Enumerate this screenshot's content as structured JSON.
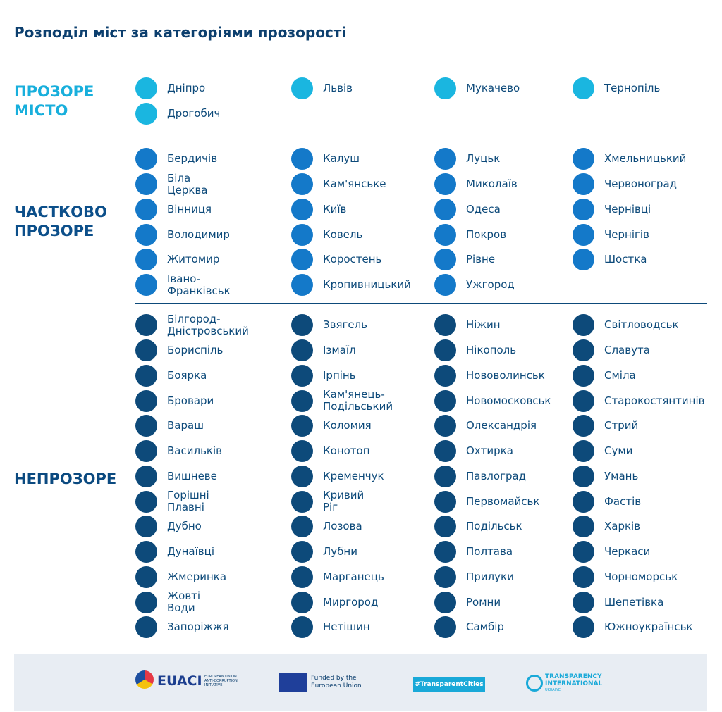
{
  "title": "Розподіл міст за категоріями прозорості",
  "sections": [
    {
      "label_lines": [
        "ПРОЗОРЕ",
        "МІСТО"
      ],
      "color": "#1ab6e0",
      "label_color": "#18afdc",
      "columns": [
        [
          "Дніпро",
          "Дрогобич"
        ],
        [
          "Львів"
        ],
        [
          "Мукачево"
        ],
        [
          "Тернопіль"
        ]
      ]
    },
    {
      "label_lines": [
        "ЧАСТКОВО",
        "ПРОЗОРЕ"
      ],
      "color": "#1479c9",
      "label_color": "#0c4f8a",
      "columns": [
        [
          "Бердичів",
          "Біла Церква",
          "Вінниця",
          "Володимир",
          "Житомир",
          "Івано-Франківськ"
        ],
        [
          "Калуш",
          "Кам'янське",
          "Київ",
          "Ковель",
          "Коростень",
          "Кропивницький"
        ],
        [
          "Луцьк",
          "Миколаїв",
          "Одеса",
          "Покров",
          "Рівне",
          "Ужгород"
        ],
        [
          "Хмельницький",
          "Червоноград",
          "Чернівці",
          "Чернігів",
          "Шостка"
        ]
      ]
    },
    {
      "label_lines": [
        "НЕПРОЗОРЕ"
      ],
      "color": "#0d4a7a",
      "label_color": "#0b4a80",
      "columns": [
        [
          "Білгород-Дністровський",
          "Бориспіль",
          "Боярка",
          "Бровари",
          "Вараш",
          "Васильків",
          "Вишневе",
          "Горішні Плавні",
          "Дубно",
          "Дунаївці",
          "Жмеринка",
          "Жовті Води",
          "Запоріжжя"
        ],
        [
          "Звягель",
          "Ізмаїл",
          "Ірпінь",
          "Кам'янець-Подільський",
          "Коломия",
          "Конотоп",
          "Кременчук",
          "Кривий Ріг",
          "Лозова",
          "Лубни",
          "Марганець",
          "Миргород",
          "Нетішин"
        ],
        [
          "Ніжин",
          "Нікополь",
          "Нововолинськ",
          "Новомосковськ",
          "Олександрія",
          "Охтирка",
          "Павлоград",
          "Первомайськ",
          "Подільськ",
          "Полтава",
          "Прилуки",
          "Ромни",
          "Самбір"
        ],
        [
          "Світловодськ",
          "Славута",
          "Сміла",
          "Старокостянтинів",
          "Стрий",
          "Суми",
          "Умань",
          "Фастів",
          "Харків",
          "Черкаси",
          "Чорноморськ",
          "Шепетівка",
          "Южноукраїнськ"
        ]
      ]
    }
  ],
  "footer": {
    "euaci": "EUACI",
    "euaci_sub": "EUROPEAN UNION ANTI-CORRUPTION INITIATIVE",
    "eu": "Funded by the European Union",
    "tc": "#TransparentCities",
    "ti": "TRANSPARENCY INTERNATIONAL",
    "ti_sub": "UKRAINE"
  }
}
